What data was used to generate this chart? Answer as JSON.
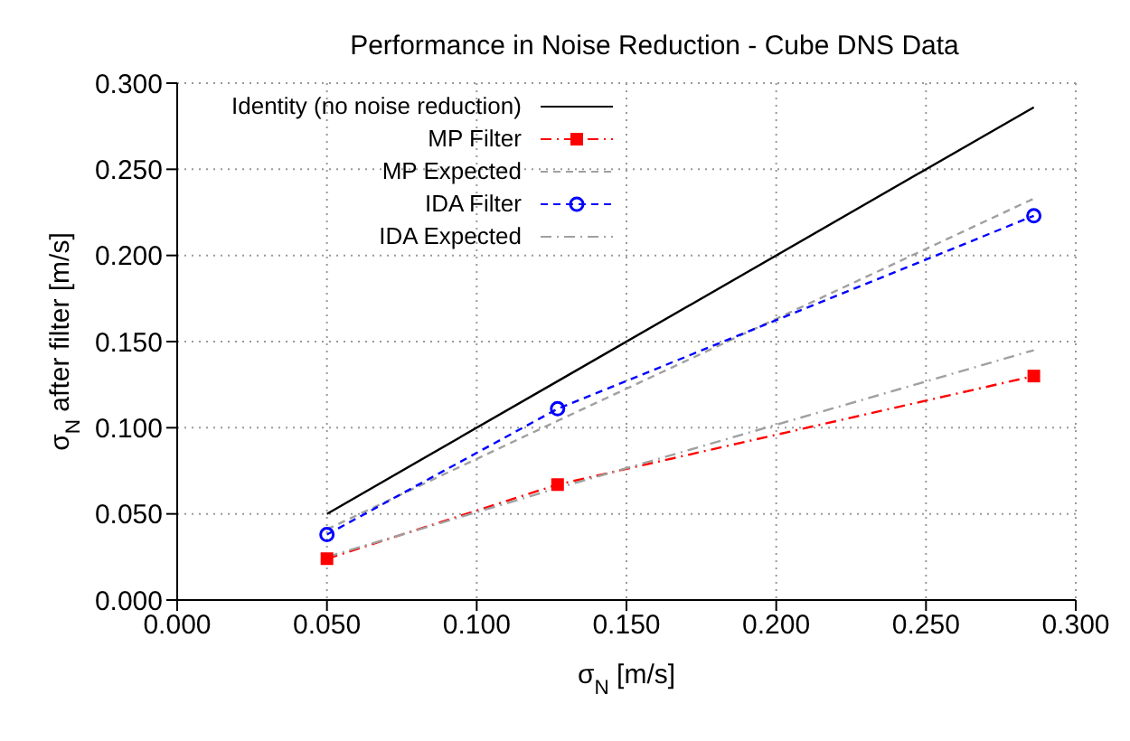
{
  "chart_data": {
    "type": "line",
    "title": "Performance in Noise Reduction - Cube DNS Data",
    "xlabel": "σ$_{N}$ [m/s]",
    "ylabel": "σ$_{N}$ after filter [m/s]",
    "x": [
      0.05,
      0.127,
      0.286
    ],
    "series": [
      {
        "name": "Identity (no noise reduction)",
        "color": "#000000",
        "values": [
          0.05,
          0.127,
          0.286
        ],
        "line_style": "solid",
        "marker": "none"
      },
      {
        "name": "MP Filter",
        "color": "#ff0000",
        "values": [
          0.024,
          0.067,
          0.13
        ],
        "line_style": "dashdot",
        "marker": "square"
      },
      {
        "name": "MP Expected",
        "color": "#a0a0a0",
        "values": [
          0.041,
          0.104,
          0.233
        ],
        "line_style": "dashed",
        "marker": "none"
      },
      {
        "name": "IDA Filter",
        "color": "#0000ff",
        "values": [
          0.038,
          0.111,
          0.223
        ],
        "line_style": "dashed",
        "marker": "circle"
      },
      {
        "name": "IDA Expected",
        "color": "#a0a0a0",
        "values": [
          0.025,
          0.065,
          0.145
        ],
        "line_style": "dashdot",
        "marker": "none"
      }
    ],
    "xlim": [
      0,
      0.3
    ],
    "xticks": [
      {
        "value": 0,
        "label": "0.000"
      },
      {
        "value": 0.05,
        "label": "0.050"
      },
      {
        "value": 0.1,
        "label": "0.100"
      },
      {
        "value": 0.15,
        "label": "0.150"
      },
      {
        "value": 0.2,
        "label": "0.200"
      },
      {
        "value": 0.25,
        "label": "0.250"
      },
      {
        "value": 0.3,
        "label": "0.300"
      }
    ],
    "ylim": [
      0,
      0.3
    ],
    "yticks": [
      {
        "value": 0,
        "label": "0.000"
      },
      {
        "value": 0.05,
        "label": "0.050"
      },
      {
        "value": 0.1,
        "label": "0.100"
      },
      {
        "value": 0.15,
        "label": "0.150"
      },
      {
        "value": 0.2,
        "label": "0.200"
      },
      {
        "value": 0.25,
        "label": "0.250"
      },
      {
        "value": 0.3,
        "label": "0.300"
      }
    ],
    "grid": true,
    "legend": "top left"
  }
}
